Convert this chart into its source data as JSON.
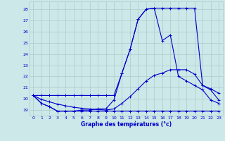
{
  "title": "Graphe des températures (°c)",
  "bg_color": "#cce8e8",
  "grid_color": "#aacccc",
  "line_color": "#0000cc",
  "hours": [
    0,
    1,
    2,
    3,
    4,
    5,
    6,
    7,
    8,
    9,
    10,
    11,
    12,
    13,
    14,
    15,
    16,
    17,
    18,
    19,
    20,
    21,
    22,
    23
  ],
  "temp_actual": [
    20.3,
    19.6,
    19.3,
    18.9,
    18.9,
    18.9,
    19.0,
    19.0,
    19.1,
    19.1,
    19.9,
    22.3,
    24.4,
    27.1,
    28.0,
    28.1,
    25.2,
    25.7,
    22.0,
    21.6,
    21.2,
    20.8,
    19.9,
    19.6
  ],
  "temp_min": [
    20.3,
    19.6,
    19.3,
    18.9,
    18.9,
    18.9,
    18.9,
    18.9,
    18.9,
    18.9,
    18.9,
    18.9,
    18.9,
    18.9,
    18.9,
    18.9,
    18.9,
    18.9,
    18.9,
    18.9,
    18.9,
    18.9,
    18.9,
    18.9
  ],
  "temp_max": [
    20.3,
    20.3,
    20.3,
    20.3,
    20.3,
    20.3,
    20.3,
    20.3,
    20.3,
    20.3,
    20.3,
    22.3,
    24.4,
    27.1,
    28.0,
    28.1,
    28.1,
    28.1,
    28.1,
    28.1,
    28.1,
    21.2,
    20.8,
    19.9
  ],
  "temp_avg": [
    20.3,
    19.95,
    19.73,
    19.53,
    19.38,
    19.25,
    19.16,
    19.09,
    19.04,
    19.0,
    19.1,
    19.6,
    20.2,
    20.9,
    21.6,
    22.1,
    22.3,
    22.6,
    22.6,
    22.6,
    22.2,
    21.2,
    20.9,
    20.5
  ],
  "ylim": [
    18.5,
    28.7
  ],
  "yticks": [
    19,
    20,
    21,
    22,
    23,
    24,
    25,
    26,
    27,
    28
  ],
  "xlim": [
    -0.5,
    23.5
  ]
}
